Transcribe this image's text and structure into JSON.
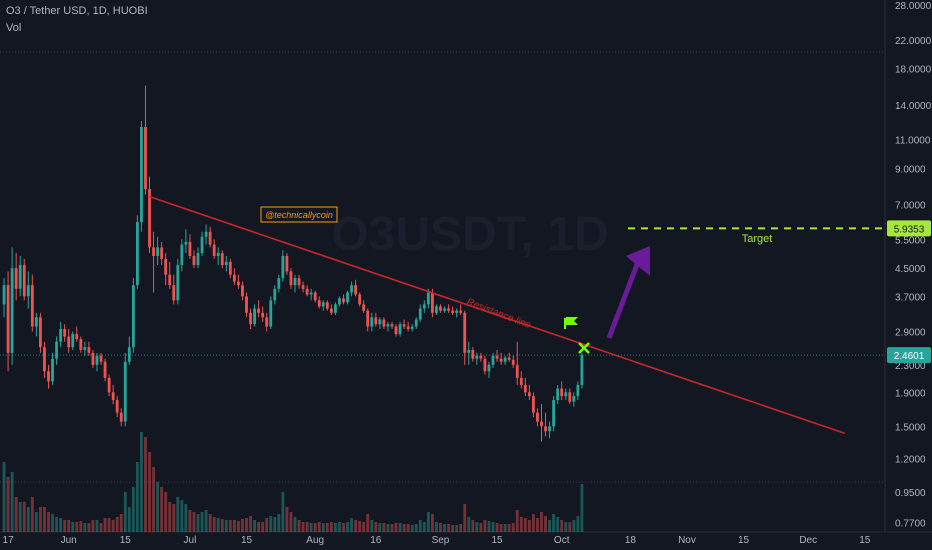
{
  "header": {
    "symbol_line": "O3 / Tether USD, 1D, HUOBI",
    "indicator": "Vol"
  },
  "watermark": "O3USDT, 1D",
  "colors": {
    "background": "#131722",
    "up": "#26a69a",
    "down": "#ef5350",
    "resistance": "#c62828",
    "target": "#a5e83a",
    "arrow": "#6a1b9a",
    "grid": "#2a2e39",
    "axis_text": "#b2b5be"
  },
  "annotations": {
    "resistance_label": "Resistance line",
    "author": "@technicallycoin",
    "target_label": "Target"
  },
  "price_badges": {
    "target": "5.9353",
    "current": "2.4601"
  },
  "chart_data": {
    "type": "candlestick",
    "title": "O3 / Tether USD, 1D, HUOBI",
    "y_scale": "log",
    "y_ticks": [
      "28.0000",
      "22.0000",
      "18.0000",
      "14.0000",
      "11.0000",
      "9.0000",
      "7.0000",
      "5.5000",
      "4.5000",
      "3.7000",
      "2.9000",
      "2.3000",
      "1.9000",
      "1.5000",
      "1.2000",
      "0.9500",
      "0.7700"
    ],
    "x_ticks": [
      "17",
      "Jun",
      "15",
      "Jul",
      "15",
      "Aug",
      "16",
      "Sep",
      "15",
      "Oct",
      "18",
      "Nov",
      "15",
      "Dec",
      "15"
    ],
    "x_range": [
      "2021-05-15",
      "2021-12-20"
    ],
    "ylim": [
      0.72,
      29
    ],
    "candles": [
      [
        "2021-05-16",
        3.5,
        4.2,
        3.2,
        4.0,
        70
      ],
      [
        "2021-05-17",
        4.0,
        4.4,
        2.2,
        2.5,
        55
      ],
      [
        "2021-05-18",
        2.5,
        5.2,
        2.3,
        4.5,
        60
      ],
      [
        "2021-05-19",
        4.5,
        5.0,
        3.6,
        3.9,
        35
      ],
      [
        "2021-05-20",
        3.9,
        4.9,
        3.7,
        4.6,
        30
      ],
      [
        "2021-05-21",
        4.6,
        4.8,
        3.6,
        3.7,
        30
      ],
      [
        "2021-05-22",
        3.7,
        4.4,
        3.4,
        4.0,
        25
      ],
      [
        "2021-05-23",
        4.0,
        4.3,
        2.9,
        3.0,
        35
      ],
      [
        "2021-05-24",
        3.0,
        3.3,
        2.8,
        3.2,
        20
      ],
      [
        "2021-05-25",
        3.2,
        3.3,
        2.5,
        2.6,
        25
      ],
      [
        "2021-05-26",
        2.6,
        2.7,
        2.1,
        2.2,
        25
      ],
      [
        "2021-05-27",
        2.2,
        2.3,
        1.95,
        2.05,
        20
      ],
      [
        "2021-05-28",
        2.05,
        2.5,
        2.0,
        2.4,
        18
      ],
      [
        "2021-05-29",
        2.4,
        2.8,
        2.3,
        2.7,
        15
      ],
      [
        "2021-05-30",
        2.7,
        3.1,
        2.6,
        2.95,
        14
      ],
      [
        "2021-05-31",
        2.95,
        3.05,
        2.7,
        2.8,
        12
      ],
      [
        "2021-06-01",
        2.8,
        2.95,
        2.5,
        2.6,
        12
      ],
      [
        "2021-06-02",
        2.6,
        2.9,
        2.55,
        2.85,
        10
      ],
      [
        "2021-06-03",
        2.85,
        3.0,
        2.7,
        2.75,
        10
      ],
      [
        "2021-06-04",
        2.75,
        2.8,
        2.5,
        2.55,
        11
      ],
      [
        "2021-06-05",
        2.55,
        2.7,
        2.45,
        2.6,
        9
      ],
      [
        "2021-06-06",
        2.6,
        2.7,
        2.45,
        2.5,
        9
      ],
      [
        "2021-06-07",
        2.5,
        2.55,
        2.25,
        2.3,
        12
      ],
      [
        "2021-06-08",
        2.3,
        2.5,
        2.2,
        2.45,
        12
      ],
      [
        "2021-06-09",
        2.45,
        2.5,
        2.3,
        2.35,
        9
      ],
      [
        "2021-06-10",
        2.35,
        2.4,
        2.05,
        2.1,
        14
      ],
      [
        "2021-06-11",
        2.1,
        2.15,
        1.85,
        1.9,
        14
      ],
      [
        "2021-06-12",
        1.9,
        2.0,
        1.75,
        1.8,
        12
      ],
      [
        "2021-06-13",
        1.8,
        1.85,
        1.6,
        1.65,
        15
      ],
      [
        "2021-06-14",
        1.65,
        1.7,
        1.5,
        1.55,
        18
      ],
      [
        "2021-06-15",
        1.55,
        2.5,
        1.5,
        2.35,
        40
      ],
      [
        "2021-06-16",
        2.35,
        2.8,
        2.3,
        2.6,
        25
      ],
      [
        "2021-06-17",
        2.6,
        4.2,
        2.5,
        4.0,
        45
      ],
      [
        "2021-06-18",
        4.0,
        6.5,
        3.9,
        6.2,
        70
      ],
      [
        "2021-06-19",
        6.2,
        12.5,
        5.8,
        12.0,
        100
      ],
      [
        "2021-06-20",
        12.0,
        16.0,
        7.5,
        7.8,
        95
      ],
      [
        "2021-06-21",
        7.8,
        8.5,
        5.0,
        5.2,
        80
      ],
      [
        "2021-06-22",
        5.2,
        5.8,
        3.8,
        4.9,
        65
      ],
      [
        "2021-06-23",
        4.9,
        5.6,
        4.6,
        5.2,
        50
      ],
      [
        "2021-06-24",
        5.2,
        5.4,
        4.6,
        4.8,
        45
      ],
      [
        "2021-06-25",
        4.8,
        5.0,
        4.0,
        4.3,
        40
      ],
      [
        "2021-06-26",
        4.3,
        4.7,
        3.9,
        4.0,
        30
      ],
      [
        "2021-06-27",
        4.0,
        4.3,
        3.5,
        3.6,
        28
      ],
      [
        "2021-06-28",
        3.6,
        4.8,
        3.5,
        4.6,
        35
      ],
      [
        "2021-06-29",
        4.6,
        5.5,
        4.4,
        5.3,
        32
      ],
      [
        "2021-06-30",
        5.3,
        5.9,
        5.0,
        5.4,
        28
      ],
      [
        "2021-07-01",
        5.4,
        5.7,
        4.8,
        4.9,
        22
      ],
      [
        "2021-07-02",
        4.9,
        5.1,
        4.5,
        4.6,
        20
      ],
      [
        "2021-07-03",
        4.6,
        5.2,
        4.5,
        5.0,
        18
      ],
      [
        "2021-07-04",
        5.0,
        5.8,
        4.9,
        5.6,
        20
      ],
      [
        "2021-07-05",
        5.6,
        6.1,
        5.3,
        5.8,
        22
      ],
      [
        "2021-07-06",
        5.8,
        6.0,
        5.2,
        5.3,
        18
      ],
      [
        "2021-07-07",
        5.3,
        5.5,
        4.8,
        4.9,
        15
      ],
      [
        "2021-07-08",
        4.9,
        5.2,
        4.6,
        5.0,
        14
      ],
      [
        "2021-07-09",
        5.0,
        5.1,
        4.5,
        4.6,
        13
      ],
      [
        "2021-07-10",
        4.6,
        4.9,
        4.4,
        4.7,
        12
      ],
      [
        "2021-07-11",
        4.7,
        4.8,
        4.2,
        4.3,
        12
      ],
      [
        "2021-07-12",
        4.3,
        4.5,
        4.0,
        4.1,
        12
      ],
      [
        "2021-07-13",
        4.1,
        4.3,
        3.9,
        4.0,
        11
      ],
      [
        "2021-07-14",
        4.0,
        4.1,
        3.6,
        3.7,
        13
      ],
      [
        "2021-07-15",
        3.7,
        3.8,
        3.2,
        3.3,
        14
      ],
      [
        "2021-07-16",
        3.3,
        3.4,
        2.95,
        3.05,
        16
      ],
      [
        "2021-07-17",
        3.05,
        3.5,
        3.0,
        3.4,
        12
      ],
      [
        "2021-07-18",
        3.4,
        3.6,
        3.2,
        3.3,
        10
      ],
      [
        "2021-07-19",
        3.3,
        3.45,
        3.1,
        3.2,
        10
      ],
      [
        "2021-07-20",
        3.2,
        3.3,
        2.9,
        3.0,
        14
      ],
      [
        "2021-07-21",
        3.0,
        3.7,
        2.95,
        3.6,
        16
      ],
      [
        "2021-07-22",
        3.6,
        4.0,
        3.5,
        3.9,
        15
      ],
      [
        "2021-07-23",
        3.9,
        4.3,
        3.8,
        4.2,
        18
      ],
      [
        "2021-07-24",
        4.2,
        5.1,
        4.1,
        4.9,
        40
      ],
      [
        "2021-07-25",
        4.9,
        5.0,
        4.3,
        4.4,
        25
      ],
      [
        "2021-07-26",
        4.4,
        4.5,
        3.9,
        4.0,
        20
      ],
      [
        "2021-07-27",
        4.0,
        4.3,
        3.8,
        4.2,
        15
      ],
      [
        "2021-07-28",
        4.2,
        4.3,
        3.9,
        4.0,
        12
      ],
      [
        "2021-07-29",
        4.0,
        4.1,
        3.8,
        3.9,
        10
      ],
      [
        "2021-07-30",
        3.9,
        4.0,
        3.7,
        3.75,
        10
      ],
      [
        "2021-07-31",
        3.75,
        3.9,
        3.6,
        3.8,
        9
      ],
      [
        "2021-08-01",
        3.8,
        3.85,
        3.55,
        3.6,
        9
      ],
      [
        "2021-08-02",
        3.6,
        3.7,
        3.4,
        3.45,
        10
      ],
      [
        "2021-08-03",
        3.45,
        3.6,
        3.35,
        3.55,
        9
      ],
      [
        "2021-08-04",
        3.55,
        3.6,
        3.35,
        3.4,
        9
      ],
      [
        "2021-08-05",
        3.4,
        3.5,
        3.25,
        3.3,
        10
      ],
      [
        "2021-08-06",
        3.3,
        3.55,
        3.25,
        3.5,
        9
      ],
      [
        "2021-08-07",
        3.5,
        3.7,
        3.45,
        3.65,
        10
      ],
      [
        "2021-08-08",
        3.65,
        3.75,
        3.5,
        3.55,
        9
      ],
      [
        "2021-08-09",
        3.55,
        3.85,
        3.5,
        3.8,
        10
      ],
      [
        "2021-08-10",
        3.8,
        4.1,
        3.7,
        4.0,
        14
      ],
      [
        "2021-08-11",
        4.0,
        4.15,
        3.7,
        3.75,
        12
      ],
      [
        "2021-08-12",
        3.75,
        3.8,
        3.45,
        3.5,
        11
      ],
      [
        "2021-08-13",
        3.5,
        3.6,
        3.3,
        3.35,
        10
      ],
      [
        "2021-08-14",
        3.35,
        3.4,
        2.9,
        3.0,
        18
      ],
      [
        "2021-08-15",
        3.0,
        3.3,
        2.9,
        3.2,
        12
      ],
      [
        "2021-08-16",
        3.2,
        3.3,
        3.0,
        3.05,
        10
      ],
      [
        "2021-08-17",
        3.05,
        3.2,
        2.95,
        3.15,
        9
      ],
      [
        "2021-08-18",
        3.15,
        3.2,
        2.95,
        3.0,
        9
      ],
      [
        "2021-08-19",
        3.0,
        3.1,
        2.9,
        3.05,
        8
      ],
      [
        "2021-08-20",
        3.05,
        3.1,
        2.95,
        3.0,
        8
      ],
      [
        "2021-08-21",
        3.0,
        3.05,
        2.8,
        2.85,
        9
      ],
      [
        "2021-08-22",
        2.85,
        3.1,
        2.8,
        3.05,
        9
      ],
      [
        "2021-08-23",
        3.05,
        3.15,
        2.95,
        3.0,
        8
      ],
      [
        "2021-08-24",
        3.0,
        3.1,
        2.9,
        2.95,
        8
      ],
      [
        "2021-08-25",
        2.95,
        3.05,
        2.9,
        3.0,
        7
      ],
      [
        "2021-08-26",
        3.0,
        3.2,
        2.95,
        3.15,
        8
      ],
      [
        "2021-08-27",
        3.15,
        3.5,
        3.1,
        3.4,
        12
      ],
      [
        "2021-08-28",
        3.4,
        3.6,
        3.3,
        3.5,
        10
      ],
      [
        "2021-08-29",
        3.5,
        3.9,
        3.4,
        3.8,
        20
      ],
      [
        "2021-08-30",
        3.8,
        3.9,
        3.2,
        3.3,
        18
      ],
      [
        "2021-08-31",
        3.3,
        3.5,
        3.25,
        3.45,
        10
      ],
      [
        "2021-09-01",
        3.45,
        3.5,
        3.3,
        3.35,
        9
      ],
      [
        "2021-09-02",
        3.35,
        3.45,
        3.3,
        3.4,
        8
      ],
      [
        "2021-09-03",
        3.4,
        3.5,
        3.3,
        3.35,
        8
      ],
      [
        "2021-09-04",
        3.35,
        3.45,
        3.25,
        3.3,
        7
      ],
      [
        "2021-09-05",
        3.3,
        3.4,
        3.2,
        3.35,
        7
      ],
      [
        "2021-09-06",
        3.35,
        3.5,
        3.25,
        3.3,
        8
      ],
      [
        "2021-09-07",
        3.3,
        3.35,
        2.3,
        2.5,
        28
      ],
      [
        "2021-09-08",
        2.5,
        2.7,
        2.3,
        2.55,
        15
      ],
      [
        "2021-09-09",
        2.55,
        2.6,
        2.35,
        2.4,
        12
      ],
      [
        "2021-09-10",
        2.4,
        2.5,
        2.3,
        2.45,
        10
      ],
      [
        "2021-09-11",
        2.45,
        2.5,
        2.35,
        2.4,
        9
      ],
      [
        "2021-09-12",
        2.4,
        2.45,
        2.15,
        2.2,
        12
      ],
      [
        "2021-09-13",
        2.2,
        2.35,
        2.1,
        2.3,
        11
      ],
      [
        "2021-09-14",
        2.3,
        2.5,
        2.25,
        2.45,
        10
      ],
      [
        "2021-09-15",
        2.45,
        2.55,
        2.35,
        2.4,
        9
      ],
      [
        "2021-09-16",
        2.4,
        2.5,
        2.3,
        2.35,
        8
      ],
      [
        "2021-09-17",
        2.35,
        2.45,
        2.3,
        2.42,
        8
      ],
      [
        "2021-09-18",
        2.42,
        2.5,
        2.35,
        2.38,
        8
      ],
      [
        "2021-09-19",
        2.38,
        2.45,
        2.25,
        2.3,
        9
      ],
      [
        "2021-09-20",
        2.3,
        2.7,
        2.0,
        2.1,
        22
      ],
      [
        "2021-09-21",
        2.1,
        2.2,
        1.95,
        2.0,
        15
      ],
      [
        "2021-09-22",
        2.0,
        2.1,
        1.85,
        1.9,
        14
      ],
      [
        "2021-09-23",
        1.9,
        2.0,
        1.8,
        1.85,
        12
      ],
      [
        "2021-09-24",
        1.85,
        1.9,
        1.6,
        1.65,
        18
      ],
      [
        "2021-09-25",
        1.65,
        1.7,
        1.5,
        1.55,
        14
      ],
      [
        "2021-09-26",
        1.55,
        1.75,
        1.35,
        1.5,
        20
      ],
      [
        "2021-09-27",
        1.5,
        1.65,
        1.4,
        1.45,
        16
      ],
      [
        "2021-09-28",
        1.45,
        1.55,
        1.38,
        1.5,
        12
      ],
      [
        "2021-09-29",
        1.5,
        1.85,
        1.45,
        1.8,
        18
      ],
      [
        "2021-09-30",
        1.8,
        2.0,
        1.75,
        1.95,
        15
      ],
      [
        "2021-10-01",
        1.95,
        2.05,
        1.8,
        1.85,
        12
      ],
      [
        "2021-10-02",
        1.85,
        1.95,
        1.8,
        1.9,
        10
      ],
      [
        "2021-10-03",
        1.9,
        1.95,
        1.75,
        1.78,
        10
      ],
      [
        "2021-10-04",
        1.78,
        1.9,
        1.72,
        1.85,
        12
      ],
      [
        "2021-10-05",
        1.85,
        2.05,
        1.8,
        2.0,
        16
      ],
      [
        "2021-10-06",
        2.0,
        2.5,
        1.95,
        2.46,
        48
      ]
    ]
  }
}
